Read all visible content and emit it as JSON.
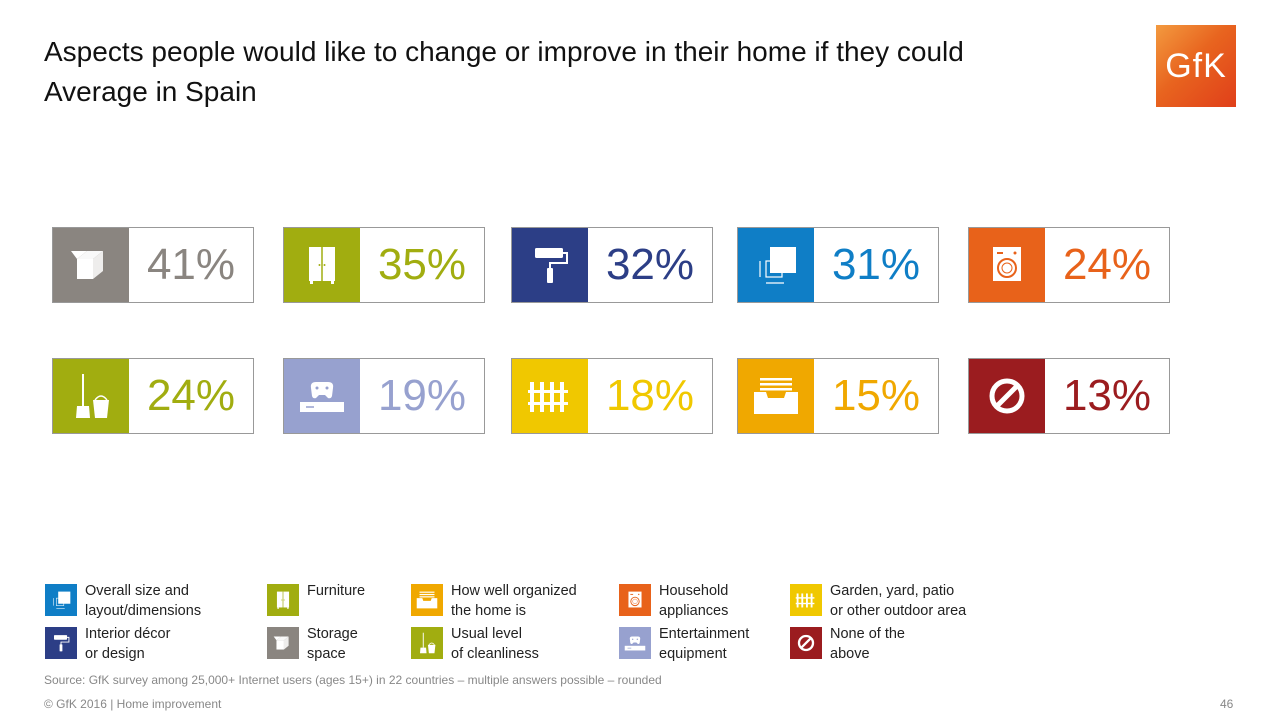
{
  "title": {
    "line1": "Aspects people would like to change or improve in their home if they could",
    "line2": "Average in Spain"
  },
  "logo": {
    "text": "GfK"
  },
  "tiles": [
    {
      "value": "41%",
      "icon": "storage-box-icon",
      "color": "#8a8580"
    },
    {
      "value": "35%",
      "icon": "wardrobe-icon",
      "color": "#a1ad10"
    },
    {
      "value": "32%",
      "icon": "paint-roller-icon",
      "color": "#2c3e86"
    },
    {
      "value": "31%",
      "icon": "floor-plan-icon",
      "color": "#0f7ec6"
    },
    {
      "value": "24%",
      "icon": "washing-machine-icon",
      "color": "#e8621a"
    },
    {
      "value": "24%",
      "icon": "mop-bucket-icon",
      "color": "#a1ad10"
    },
    {
      "value": "19%",
      "icon": "game-console-icon",
      "color": "#97a1cf"
    },
    {
      "value": "18%",
      "icon": "fence-icon",
      "color": "#f0c800"
    },
    {
      "value": "15%",
      "icon": "drawer-tray-icon",
      "color": "#f0a800"
    },
    {
      "value": "13%",
      "icon": "no-entry-icon",
      "color": "#9b1c1f"
    }
  ],
  "legend": [
    {
      "line1": "Overall size and",
      "line2": "layout/dimensions"
    },
    {
      "line1": "Furniture",
      "line2": ""
    },
    {
      "line1": "How well organized",
      "line2": "the home is"
    },
    {
      "line1": "Household",
      "line2": "appliances"
    },
    {
      "line1": "Garden, yard, patio",
      "line2": "or other outdoor area"
    },
    {
      "line1": "Interior décor",
      "line2": "or design"
    },
    {
      "line1": "Storage",
      "line2": "space"
    },
    {
      "line1": "Usual level",
      "line2": "of cleanliness"
    },
    {
      "line1": "Entertainment",
      "line2": "equipment"
    },
    {
      "line1": "None of the",
      "line2": "above"
    }
  ],
  "source": "Source: GfK survey among 25,000+ Internet users (ages 15+) in 22 countries – multiple answers possible – rounded",
  "footer": "© GfK 2016 | Home improvement",
  "page_number": "46"
}
